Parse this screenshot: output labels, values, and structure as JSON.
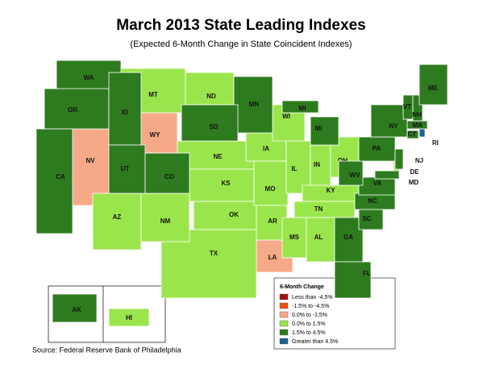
{
  "header": {
    "title": "March 2013 State Leading Indexes",
    "subtitle": "(Expected 6-Month Change in State Coincident Indexes)"
  },
  "legend": {
    "title": "6-Month Change",
    "items": [
      {
        "label": "Less than -4.5%",
        "color": "#a50f15",
        "states": []
      },
      {
        "label": "-1.5% to -4.5%",
        "color": "#e6550d",
        "states": []
      },
      {
        "label": "0.0% to -1.5%",
        "color": "#f6a987",
        "states": [
          "NV",
          "WY",
          "LA"
        ]
      },
      {
        "label": "0.0% to 1.5%",
        "color": "#9be54c",
        "states": [
          "MT",
          "ND",
          "NE",
          "KS",
          "OK",
          "TX",
          "NM",
          "AZ",
          "IA",
          "MO",
          "AR",
          "IL",
          "IN",
          "OH",
          "KY",
          "TN",
          "MS",
          "AL",
          "WI",
          "DE",
          "HI"
        ]
      },
      {
        "label": "1.5% to 4.5%",
        "color": "#2e7b1f",
        "states": [
          "WA",
          "OR",
          "ID",
          "CA",
          "UT",
          "CO",
          "MN",
          "SD",
          "MI",
          "MI",
          "GA",
          "FL",
          "SC",
          "NC",
          "VA",
          "WV",
          "PA",
          "NY",
          "VT",
          "NH",
          "ME",
          "MA",
          "CT",
          "NJ",
          "MD",
          "AK"
        ]
      },
      {
        "label": "Greater than 4.5%",
        "color": "#1f5f8b",
        "states": [
          "RI"
        ]
      }
    ]
  },
  "source": "Source: Federal Reserve Bank of Philadelphia"
}
